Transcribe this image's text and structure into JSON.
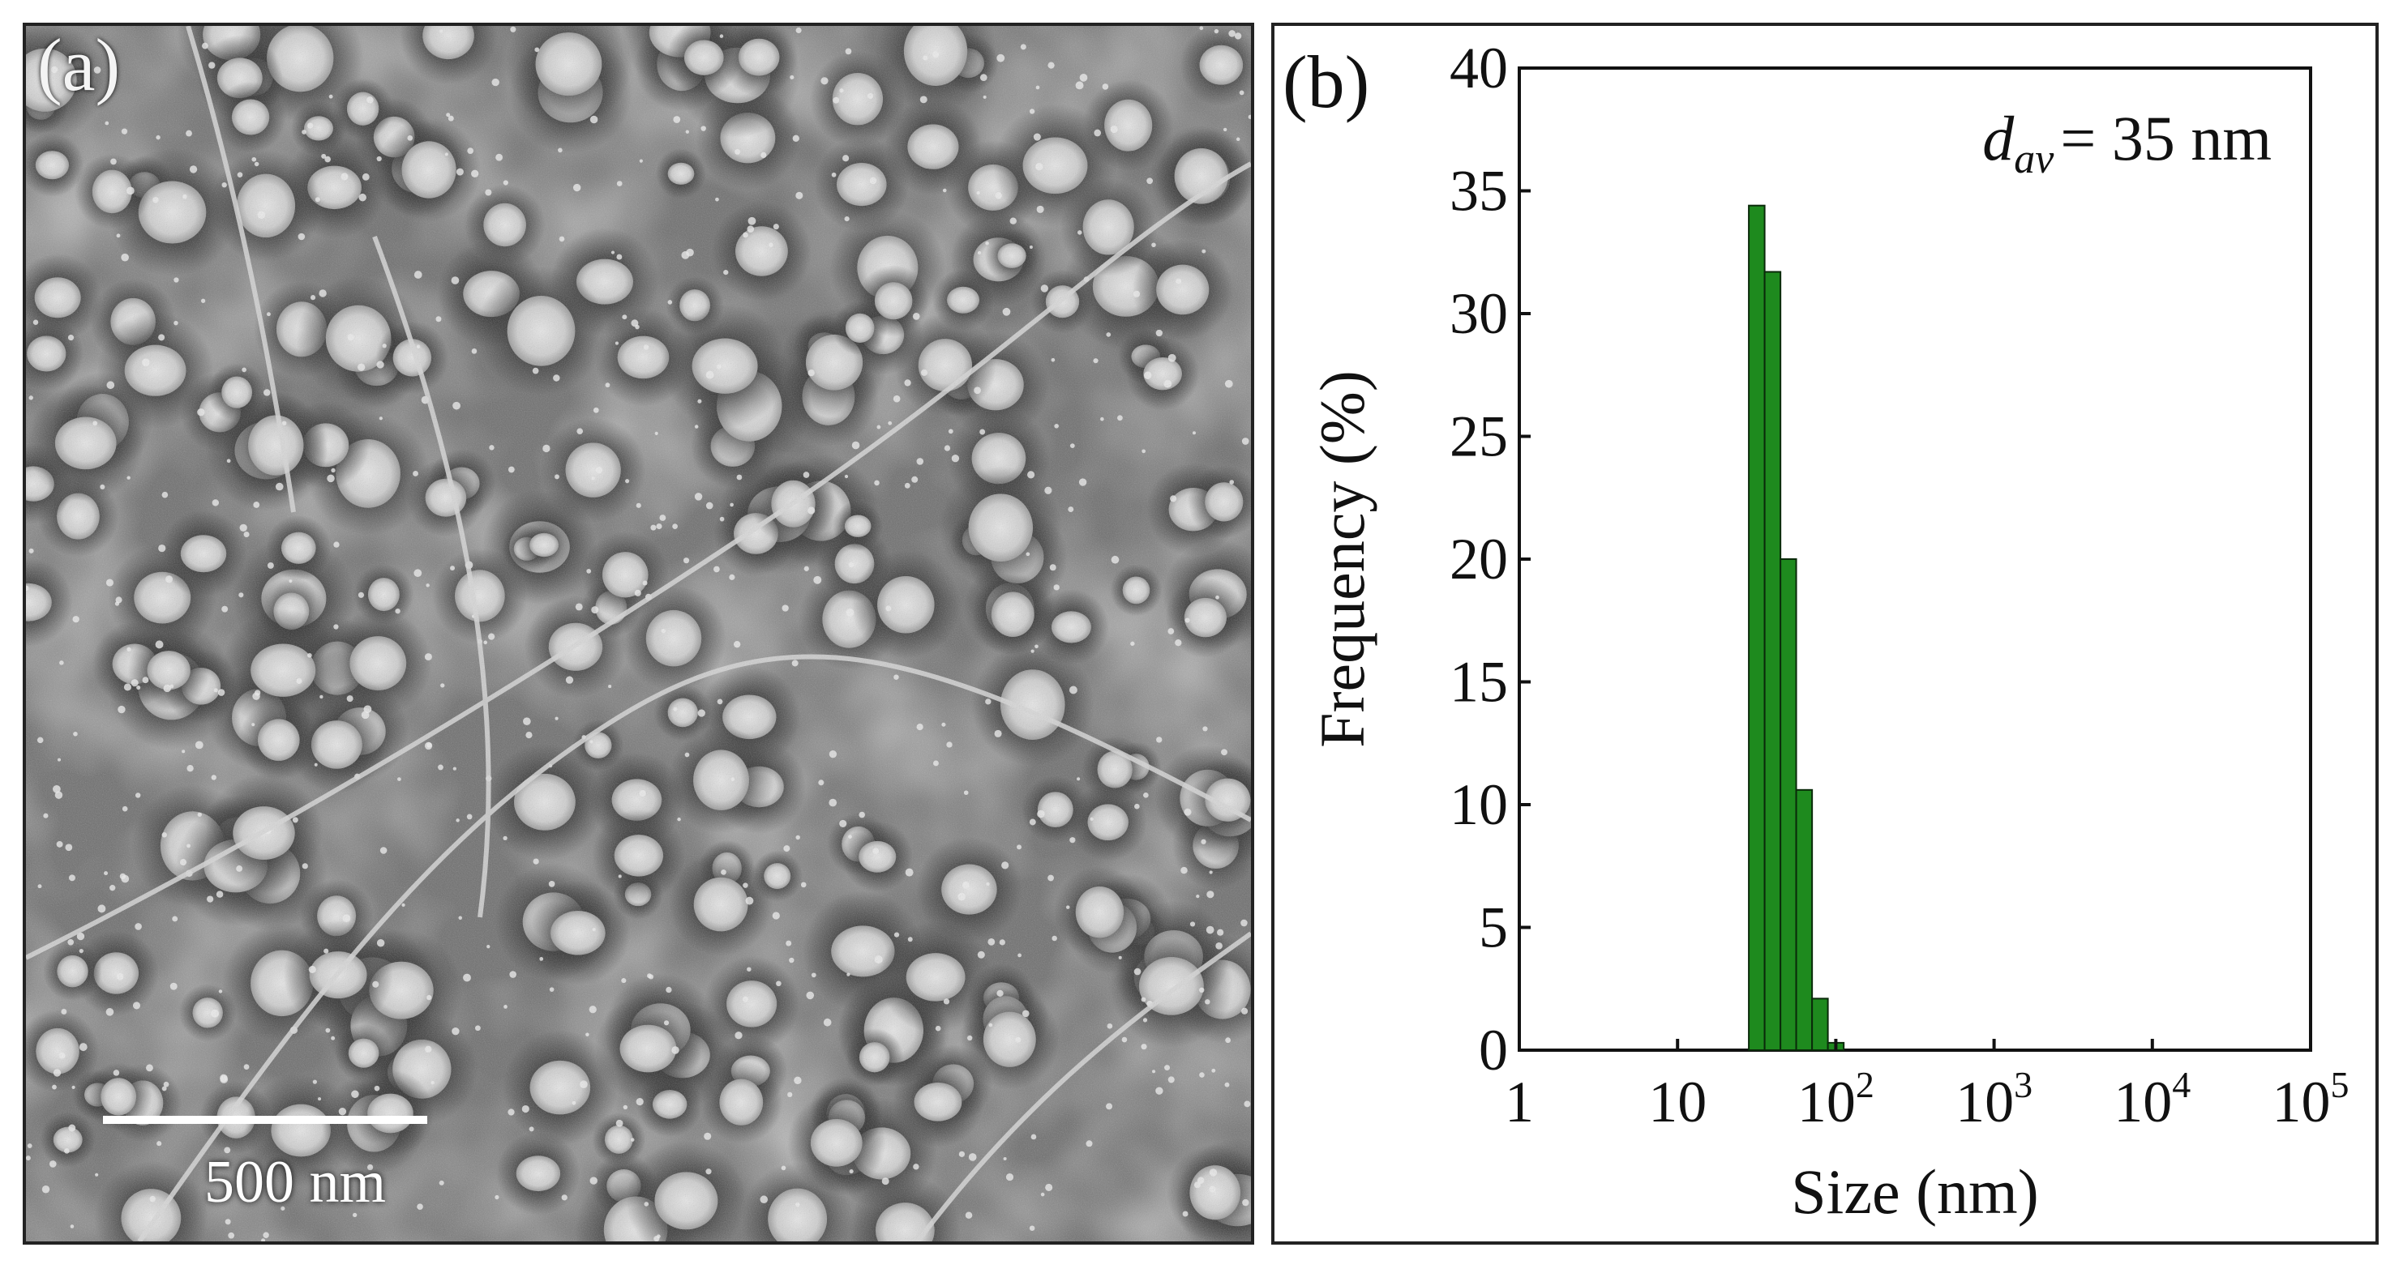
{
  "panel_a": {
    "label": "(a)",
    "scale_bar_label": "500 nm"
  },
  "panel_b": {
    "label": "(b)",
    "annotation": {
      "symbol": "d",
      "subscript": "av",
      "value_text": "= 35 nm"
    }
  },
  "chart_data": {
    "type": "bar",
    "xlabel": "Size (nm)",
    "ylabel": "Frequency (%)",
    "x_scale": "log",
    "xlim": [
      1,
      100000
    ],
    "ylim": [
      0,
      40
    ],
    "x_ticks": [
      {
        "value": 1,
        "base": "1",
        "exp": ""
      },
      {
        "value": 10,
        "base": "10",
        "exp": ""
      },
      {
        "value": 100,
        "base": "10",
        "exp": "2"
      },
      {
        "value": 1000,
        "base": "10",
        "exp": "3"
      },
      {
        "value": 10000,
        "base": "10",
        "exp": "4"
      },
      {
        "value": 100000,
        "base": "10",
        "exp": "5"
      }
    ],
    "y_ticks": [
      0,
      5,
      10,
      15,
      20,
      25,
      30,
      35,
      40
    ],
    "bar_color": "#1e8a1e",
    "bins": [
      {
        "from": 28.2,
        "to": 35.5,
        "value": 34.4
      },
      {
        "from": 35.5,
        "to": 44.7,
        "value": 31.7
      },
      {
        "from": 44.7,
        "to": 56.2,
        "value": 20.0
      },
      {
        "from": 56.2,
        "to": 70.8,
        "value": 10.6
      },
      {
        "from": 70.8,
        "to": 89.1,
        "value": 2.1
      },
      {
        "from": 89.1,
        "to": 112.2,
        "value": 0.3
      }
    ],
    "grid": false,
    "legend": "none"
  }
}
